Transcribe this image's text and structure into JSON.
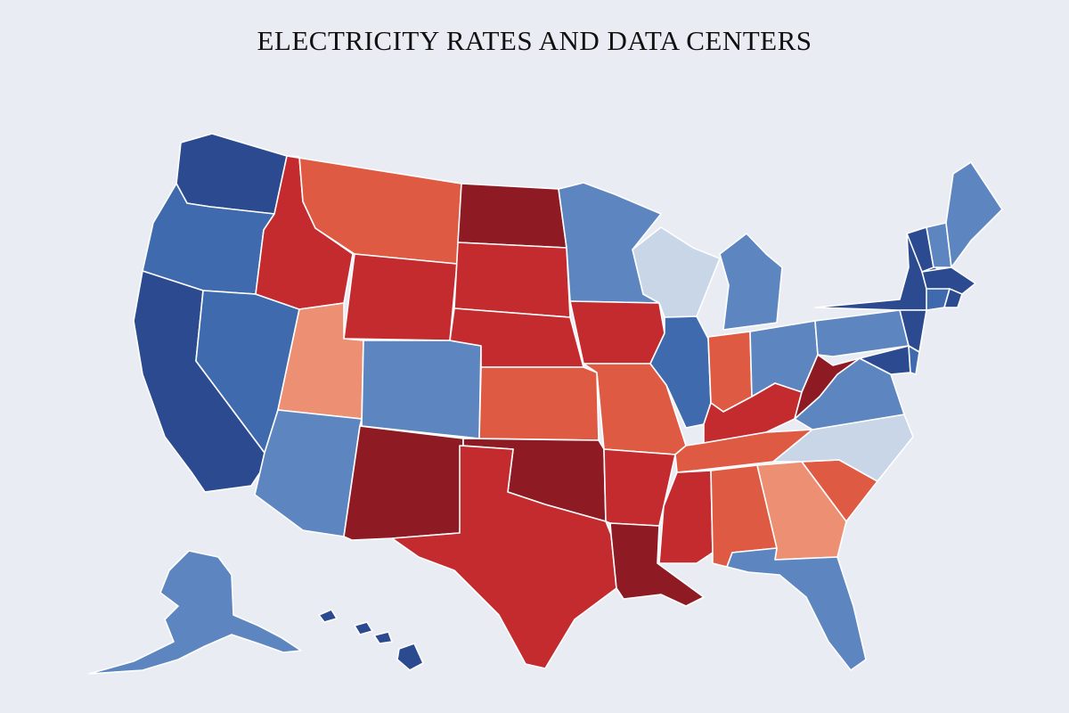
{
  "title": "ELECTRICITY RATES AND DATA CENTERS",
  "palette": {
    "navy": "#2b4a8f",
    "blue": "#3f6aad",
    "mid_blue": "#5d86c0",
    "light_blue": "#c9d6e8",
    "peach": "#ec8f73",
    "orange_red": "#df5a43",
    "red": "#c32b2f",
    "dark_red": "#8e1a24"
  },
  "states": [
    {
      "name": "WA",
      "color": "navy"
    },
    {
      "name": "OR",
      "color": "blue"
    },
    {
      "name": "CA",
      "color": "navy"
    },
    {
      "name": "NV",
      "color": "blue"
    },
    {
      "name": "ID",
      "color": "red"
    },
    {
      "name": "MT",
      "color": "orange_red"
    },
    {
      "name": "WY",
      "color": "red"
    },
    {
      "name": "UT",
      "color": "peach"
    },
    {
      "name": "CO",
      "color": "mid_blue"
    },
    {
      "name": "AZ",
      "color": "mid_blue"
    },
    {
      "name": "NM",
      "color": "dark_red"
    },
    {
      "name": "ND",
      "color": "dark_red"
    },
    {
      "name": "SD",
      "color": "red"
    },
    {
      "name": "NE",
      "color": "red"
    },
    {
      "name": "KS",
      "color": "orange_red"
    },
    {
      "name": "OK",
      "color": "dark_red"
    },
    {
      "name": "TX",
      "color": "red"
    },
    {
      "name": "MN",
      "color": "mid_blue"
    },
    {
      "name": "IA",
      "color": "red"
    },
    {
      "name": "MO",
      "color": "orange_red"
    },
    {
      "name": "AR",
      "color": "red"
    },
    {
      "name": "LA",
      "color": "dark_red"
    },
    {
      "name": "WI",
      "color": "light_blue"
    },
    {
      "name": "IL",
      "color": "blue"
    },
    {
      "name": "MI",
      "color": "mid_blue"
    },
    {
      "name": "IN",
      "color": "orange_red"
    },
    {
      "name": "OH",
      "color": "mid_blue"
    },
    {
      "name": "KY",
      "color": "red"
    },
    {
      "name": "TN",
      "color": "orange_red"
    },
    {
      "name": "MS",
      "color": "red"
    },
    {
      "name": "AL",
      "color": "orange_red"
    },
    {
      "name": "GA",
      "color": "peach"
    },
    {
      "name": "FL",
      "color": "mid_blue"
    },
    {
      "name": "SC",
      "color": "orange_red"
    },
    {
      "name": "NC",
      "color": "light_blue"
    },
    {
      "name": "VA",
      "color": "mid_blue"
    },
    {
      "name": "WV",
      "color": "dark_red"
    },
    {
      "name": "PA",
      "color": "mid_blue"
    },
    {
      "name": "NY",
      "color": "navy"
    },
    {
      "name": "NJ",
      "color": "navy"
    },
    {
      "name": "MD",
      "color": "navy"
    },
    {
      "name": "DE",
      "color": "blue"
    },
    {
      "name": "VT",
      "color": "navy"
    },
    {
      "name": "NH",
      "color": "mid_blue"
    },
    {
      "name": "ME",
      "color": "mid_blue"
    },
    {
      "name": "MA",
      "color": "navy"
    },
    {
      "name": "CT",
      "color": "blue"
    },
    {
      "name": "RI",
      "color": "navy"
    },
    {
      "name": "AK",
      "color": "mid_blue"
    },
    {
      "name": "HI",
      "color": "navy"
    }
  ]
}
